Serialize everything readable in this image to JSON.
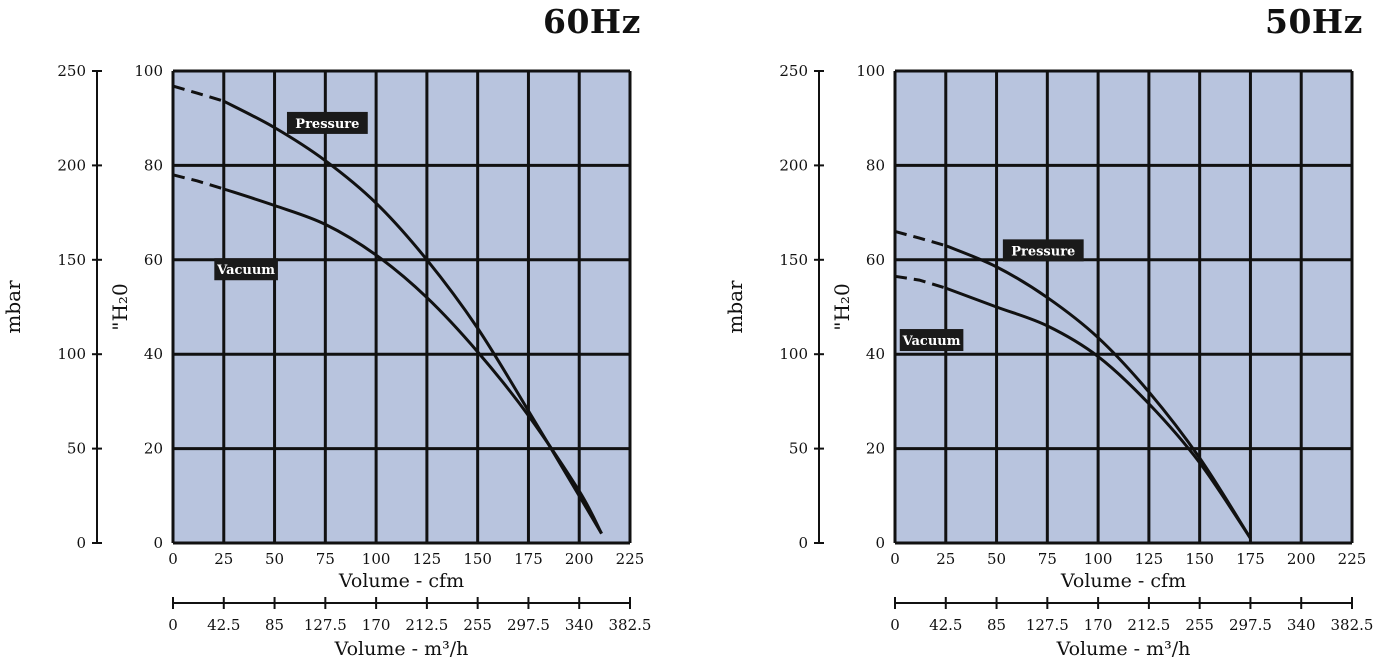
{
  "charts": [
    {
      "freq_label": "60Hz"
    },
    {
      "freq_label": "50Hz"
    }
  ],
  "chart_data": [
    {
      "type": "line",
      "title": "60Hz",
      "xlabel": "Volume - cfm",
      "x2label": "Volume - m³/h",
      "ylabel": "\"H₂0",
      "y2label": "mbar",
      "xlim": [
        0,
        225
      ],
      "ylim": [
        0,
        100
      ],
      "y2lim": [
        0,
        250
      ],
      "x_ticks": [
        "0",
        "25",
        "50",
        "75",
        "100",
        "125",
        "150",
        "175",
        "200",
        "225"
      ],
      "x2_ticks": [
        "0",
        "42.5",
        "85",
        "127.5",
        "170",
        "212.5",
        "255",
        "297.5",
        "340",
        "382.5"
      ],
      "y_ticks": [
        "0",
        "20",
        "40",
        "60",
        "80",
        "100"
      ],
      "y2_ticks": [
        "0",
        "50",
        "100",
        "150",
        "200",
        "250"
      ],
      "grid": true,
      "background": "#b8c4de",
      "series": [
        {
          "name": "Pressure",
          "label_at": [
            76,
            89
          ],
          "dashed": [
            [
              0,
              96.8
            ],
            [
              12,
              95.3
            ],
            [
              25,
              93.6
            ]
          ],
          "values": [
            [
              25,
              93.6
            ],
            [
              50,
              88
            ],
            [
              75,
              81
            ],
            [
              100,
              72
            ],
            [
              125,
              60
            ],
            [
              150,
              45.5
            ],
            [
              175,
              28
            ],
            [
              200,
              10
            ],
            [
              211,
              2
            ]
          ]
        },
        {
          "name": "Vacuum",
          "label_at": [
            36,
            58
          ],
          "dashed": [
            [
              0,
              78
            ],
            [
              12,
              76.7
            ],
            [
              25,
              75
            ]
          ],
          "values": [
            [
              25,
              75
            ],
            [
              50,
              71.5
            ],
            [
              75,
              67.5
            ],
            [
              100,
              61
            ],
            [
              125,
              52
            ],
            [
              150,
              40.5
            ],
            [
              175,
              27
            ],
            [
              200,
              11
            ],
            [
              211,
              2
            ]
          ]
        }
      ]
    },
    {
      "type": "line",
      "title": "50Hz",
      "xlabel": "Volume - cfm",
      "x2label": "Volume - m³/h",
      "ylabel": "\"H₂0",
      "y2label": "mbar",
      "xlim": [
        0,
        225
      ],
      "ylim": [
        0,
        100
      ],
      "y2lim": [
        0,
        250
      ],
      "x_ticks": [
        "0",
        "25",
        "50",
        "75",
        "100",
        "125",
        "150",
        "175",
        "200",
        "225"
      ],
      "x2_ticks": [
        "0",
        "42.5",
        "85",
        "127.5",
        "170",
        "212.5",
        "255",
        "297.5",
        "340",
        "382.5"
      ],
      "y_ticks": [
        "0",
        "20",
        "40",
        "60",
        "80",
        "100"
      ],
      "y2_ticks": [
        "0",
        "50",
        "100",
        "150",
        "200",
        "250"
      ],
      "grid": true,
      "background": "#b8c4de",
      "series": [
        {
          "name": "Pressure",
          "label_at": [
            73,
            62
          ],
          "dashed": [
            [
              0,
              66
            ],
            [
              12,
              64.6
            ],
            [
              25,
              63
            ]
          ],
          "values": [
            [
              25,
              63
            ],
            [
              50,
              58.5
            ],
            [
              75,
              52
            ],
            [
              100,
              43.5
            ],
            [
              125,
              32
            ],
            [
              150,
              18
            ],
            [
              175,
              1
            ]
          ]
        },
        {
          "name": "Vacuum",
          "label_at": [
            18,
            43
          ],
          "dashed": [
            [
              0,
              56.5
            ],
            [
              12,
              55.7
            ],
            [
              25,
              54
            ]
          ],
          "values": [
            [
              25,
              54
            ],
            [
              50,
              50
            ],
            [
              75,
              46
            ],
            [
              100,
              39.5
            ],
            [
              125,
              29.5
            ],
            [
              150,
              17
            ],
            [
              175,
              1
            ]
          ]
        }
      ]
    }
  ]
}
